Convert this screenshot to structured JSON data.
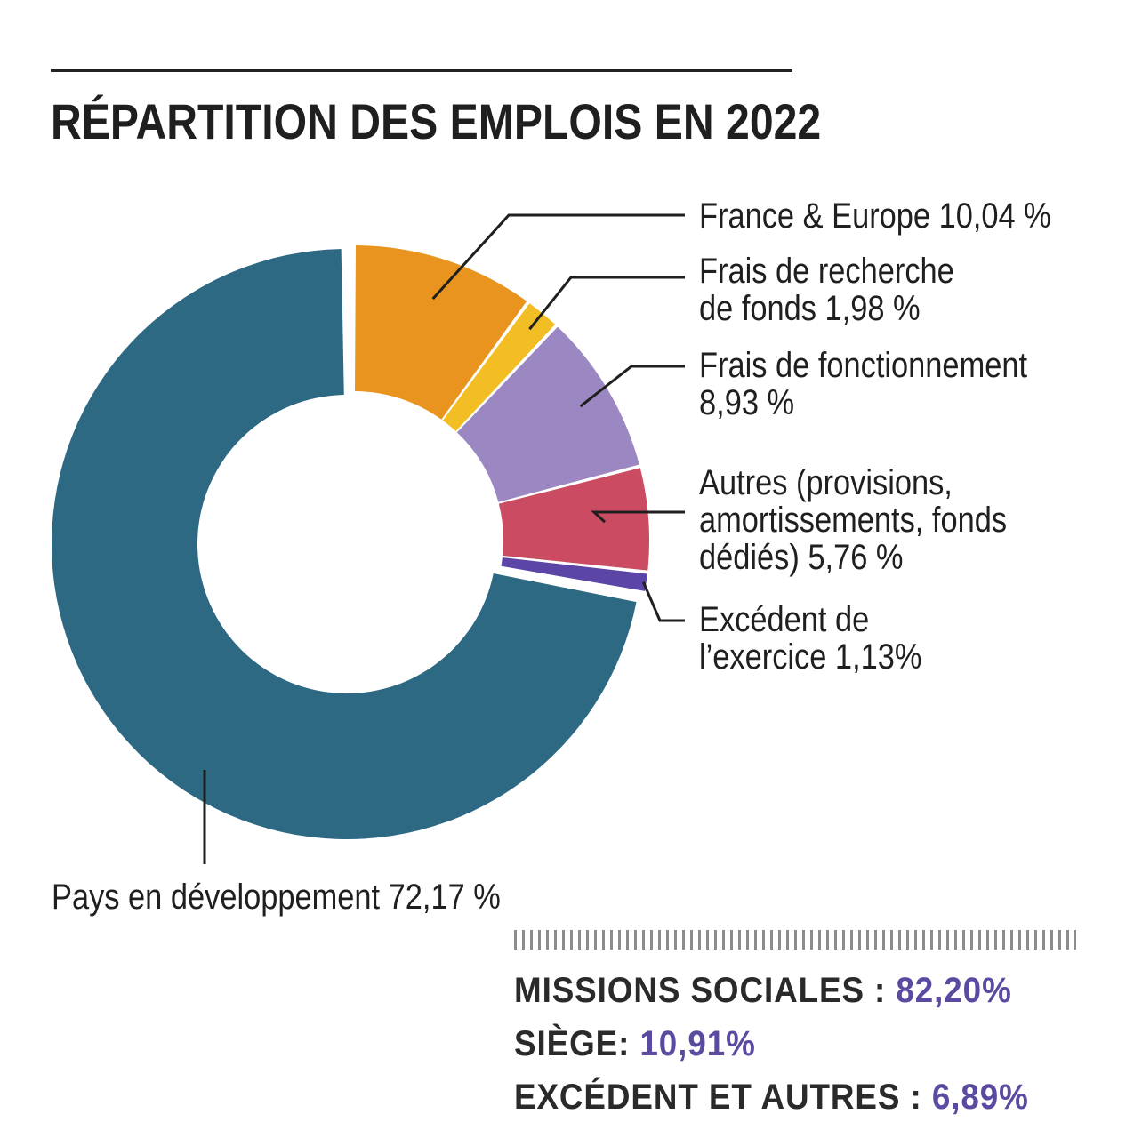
{
  "title": "RÉPARTITION DES EMPLOIS EN 2022",
  "chart_data": {
    "type": "pie",
    "donut": true,
    "title": "RÉPARTITION DES EMPLOIS EN 2022",
    "slices": [
      {
        "name": "France & Europe",
        "label_lines": [
          "France & Europe 10,04 %"
        ],
        "value": 10.04,
        "color": "#E8941E"
      },
      {
        "name": "Frais de recherche de fonds",
        "label_lines": [
          "Frais de recherche",
          "de fonds 1,98 %"
        ],
        "value": 1.98,
        "color": "#F2BE24"
      },
      {
        "name": "Frais de fonctionnement",
        "label_lines": [
          "Frais de fonctionnement",
          "8,93 %"
        ],
        "value": 8.93,
        "color": "#9B87C1"
      },
      {
        "name": "Autres (provisions, amortissements, fonds dédiés)",
        "label_lines": [
          "Autres (provisions,",
          "amortissements, fonds",
          "dédiés)  5,76 %"
        ],
        "value": 5.76,
        "color": "#CB4C62"
      },
      {
        "name": "Excédent de l’exercice",
        "label_lines": [
          "Excédent de",
          "l’exercice 1,13%"
        ],
        "value": 1.13,
        "color": "#5B45A6"
      },
      {
        "name": "Pays en développement",
        "label_lines": [
          "Pays en développement 72,17 %"
        ],
        "value": 72.17,
        "color": "#2E6983"
      }
    ]
  },
  "summary": [
    {
      "label": "MISSIONS SOCIALES : ",
      "value": "82,20%"
    },
    {
      "label": "SIÈGE: ",
      "value": "10,91%"
    },
    {
      "label": "EXCÉDENT ET AUTRES : ",
      "value": "6,89%"
    }
  ]
}
